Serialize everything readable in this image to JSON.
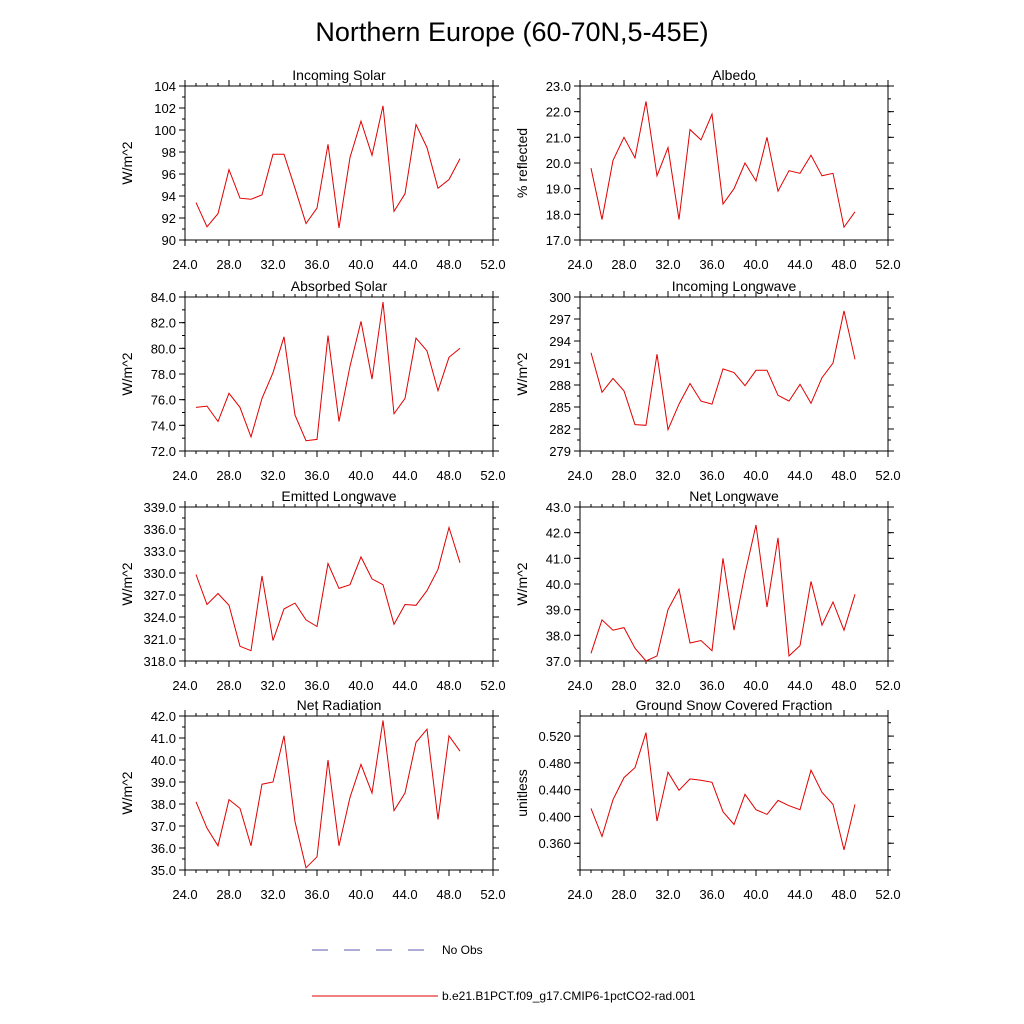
{
  "figure": {
    "title": "Northern Europe (60-70N,5-45E)"
  },
  "legend": {
    "placement": "bottom-center",
    "entries": [
      {
        "label": "No Obs",
        "color": "#5a5aa8",
        "style": "dashed"
      },
      {
        "label": "b.e21.B1PCT.f09_g17.CMIP6-1pctCO2-rad.001",
        "color": "#e00000",
        "style": "solid"
      }
    ]
  },
  "chart_data": [
    {
      "type": "line",
      "title": "Incoming Solar",
      "ylabel": "W/m^2",
      "xlim": [
        24,
        52
      ],
      "ylim": [
        90,
        104
      ],
      "xticks": [
        "24.0",
        "28.0",
        "32.0",
        "36.0",
        "40.0",
        "44.0",
        "48.0",
        "52.0"
      ],
      "yticks": [
        "90",
        "92",
        "94",
        "96",
        "98",
        "100",
        "102",
        "104"
      ],
      "series": [
        {
          "color": "#e00000",
          "x": [
            25,
            26,
            27,
            28,
            29,
            30,
            31,
            32,
            33,
            34,
            35,
            36,
            37,
            38,
            39,
            40,
            41,
            42,
            43,
            44,
            45,
            46,
            47,
            48,
            49
          ],
          "values": [
            93.4,
            91.2,
            92.4,
            96.4,
            93.8,
            93.7,
            94.1,
            97.8,
            97.8,
            94.7,
            91.5,
            92.9,
            98.7,
            91.1,
            97.5,
            100.8,
            97.7,
            102.2,
            92.6,
            94.2,
            100.5,
            98.4,
            94.7,
            95.5,
            97.4
          ]
        }
      ]
    },
    {
      "type": "line",
      "title": "Albedo",
      "ylabel": "% reflected",
      "xlim": [
        24,
        52
      ],
      "ylim": [
        17,
        23
      ],
      "xticks": [
        "24.0",
        "28.0",
        "32.0",
        "36.0",
        "40.0",
        "44.0",
        "48.0",
        "52.0"
      ],
      "yticks": [
        "17.0",
        "18.0",
        "19.0",
        "20.0",
        "21.0",
        "22.0",
        "23.0"
      ],
      "series": [
        {
          "color": "#e00000",
          "x": [
            25,
            26,
            27,
            28,
            29,
            30,
            31,
            32,
            33,
            34,
            35,
            36,
            37,
            38,
            39,
            40,
            41,
            42,
            43,
            44,
            45,
            46,
            47,
            48,
            49
          ],
          "values": [
            19.8,
            17.8,
            20.1,
            21.0,
            20.2,
            22.4,
            19.5,
            20.6,
            17.8,
            21.3,
            20.9,
            21.9,
            18.4,
            19.0,
            20.0,
            19.3,
            21.0,
            18.9,
            19.7,
            19.6,
            20.3,
            19.5,
            19.6,
            17.5,
            18.1
          ]
        }
      ]
    },
    {
      "type": "line",
      "title": "Absorbed Solar",
      "ylabel": "W/m^2",
      "xlim": [
        24,
        52
      ],
      "ylim": [
        72,
        84
      ],
      "xticks": [
        "24.0",
        "28.0",
        "32.0",
        "36.0",
        "40.0",
        "44.0",
        "48.0",
        "52.0"
      ],
      "yticks": [
        "72.0",
        "74.0",
        "76.0",
        "78.0",
        "80.0",
        "82.0",
        "84.0"
      ],
      "series": [
        {
          "color": "#e00000",
          "x": [
            25,
            26,
            27,
            28,
            29,
            30,
            31,
            32,
            33,
            34,
            35,
            36,
            37,
            38,
            39,
            40,
            41,
            42,
            43,
            44,
            45,
            46,
            47,
            48,
            49
          ],
          "values": [
            75.4,
            75.5,
            74.3,
            76.5,
            75.4,
            73.1,
            76.1,
            78.1,
            80.9,
            74.8,
            72.8,
            72.9,
            81.0,
            74.3,
            78.6,
            82.1,
            77.6,
            83.6,
            74.9,
            76.1,
            80.8,
            79.8,
            76.7,
            79.3,
            80.0
          ]
        }
      ]
    },
    {
      "type": "line",
      "title": "Incoming Longwave",
      "ylabel": "W/m^2",
      "xlim": [
        24,
        52
      ],
      "ylim": [
        279,
        300
      ],
      "xticks": [
        "24.0",
        "28.0",
        "32.0",
        "36.0",
        "40.0",
        "44.0",
        "48.0",
        "52.0"
      ],
      "yticks": [
        "279",
        "282",
        "285",
        "288",
        "291",
        "294",
        "297",
        "300"
      ],
      "series": [
        {
          "color": "#e00000",
          "x": [
            25,
            26,
            27,
            28,
            29,
            30,
            31,
            32,
            33,
            34,
            35,
            36,
            37,
            38,
            39,
            40,
            41,
            42,
            43,
            44,
            45,
            46,
            47,
            48,
            49
          ],
          "values": [
            292.4,
            287.0,
            288.9,
            287.2,
            282.6,
            282.5,
            292.2,
            281.9,
            285.4,
            288.2,
            285.8,
            285.4,
            290.2,
            289.7,
            287.9,
            290.0,
            290.0,
            286.6,
            285.8,
            288.1,
            285.5,
            289.0,
            291.0,
            298.1,
            291.5
          ]
        }
      ]
    },
    {
      "type": "line",
      "title": "Emitted Longwave",
      "ylabel": "W/m^2",
      "xlim": [
        24,
        52
      ],
      "ylim": [
        318,
        339
      ],
      "xticks": [
        "24.0",
        "28.0",
        "32.0",
        "36.0",
        "40.0",
        "44.0",
        "48.0",
        "52.0"
      ],
      "yticks": [
        "318.0",
        "321.0",
        "324.0",
        "327.0",
        "330.0",
        "333.0",
        "336.0",
        "339.0"
      ],
      "series": [
        {
          "color": "#e00000",
          "x": [
            25,
            26,
            27,
            28,
            29,
            30,
            31,
            32,
            33,
            34,
            35,
            36,
            37,
            38,
            39,
            40,
            41,
            42,
            43,
            44,
            45,
            46,
            47,
            48,
            49
          ],
          "values": [
            329.8,
            325.7,
            327.2,
            325.6,
            320.0,
            319.4,
            329.6,
            320.8,
            325.1,
            325.9,
            323.6,
            322.7,
            331.3,
            327.9,
            328.4,
            332.2,
            329.2,
            328.4,
            323.0,
            325.7,
            325.6,
            327.6,
            330.5,
            336.2,
            331.4
          ]
        }
      ]
    },
    {
      "type": "line",
      "title": "Net Longwave",
      "ylabel": "W/m^2",
      "xlim": [
        24,
        52
      ],
      "ylim": [
        37,
        43
      ],
      "xticks": [
        "24.0",
        "28.0",
        "32.0",
        "36.0",
        "40.0",
        "44.0",
        "48.0",
        "52.0"
      ],
      "yticks": [
        "37.0",
        "38.0",
        "39.0",
        "40.0",
        "41.0",
        "42.0",
        "43.0"
      ],
      "series": [
        {
          "color": "#e00000",
          "x": [
            25,
            26,
            27,
            28,
            29,
            30,
            31,
            32,
            33,
            34,
            35,
            36,
            37,
            38,
            39,
            40,
            41,
            42,
            43,
            44,
            45,
            46,
            47,
            48,
            49
          ],
          "values": [
            37.3,
            38.6,
            38.2,
            38.3,
            37.5,
            37.0,
            37.2,
            39.0,
            39.8,
            37.7,
            37.8,
            37.4,
            41.0,
            38.2,
            40.4,
            42.3,
            39.1,
            41.8,
            37.2,
            37.6,
            40.1,
            38.4,
            39.3,
            38.2,
            39.6
          ]
        }
      ]
    },
    {
      "type": "line",
      "title": "Net Radiation",
      "ylabel": "W/m^2",
      "xlim": [
        24,
        52
      ],
      "ylim": [
        35,
        42
      ],
      "xticks": [
        "24.0",
        "28.0",
        "32.0",
        "36.0",
        "40.0",
        "44.0",
        "48.0",
        "52.0"
      ],
      "yticks": [
        "35.0",
        "36.0",
        "37.0",
        "38.0",
        "39.0",
        "40.0",
        "41.0",
        "42.0"
      ],
      "series": [
        {
          "color": "#e00000",
          "x": [
            25,
            26,
            27,
            28,
            29,
            30,
            31,
            32,
            33,
            34,
            35,
            36,
            37,
            38,
            39,
            40,
            41,
            42,
            43,
            44,
            45,
            46,
            47,
            48,
            49
          ],
          "values": [
            38.1,
            36.9,
            36.1,
            38.2,
            37.8,
            36.1,
            38.9,
            39.0,
            41.1,
            37.2,
            35.1,
            35.6,
            40.0,
            36.1,
            38.3,
            39.8,
            38.5,
            41.8,
            37.7,
            38.5,
            40.8,
            41.4,
            37.3,
            41.1,
            40.4
          ]
        }
      ]
    },
    {
      "type": "line",
      "title": "Ground Snow Covered Fraction",
      "ylabel": "unitless",
      "xlim": [
        24,
        52
      ],
      "ylim": [
        0.32,
        0.55
      ],
      "xticks": [
        "24.0",
        "28.0",
        "32.0",
        "36.0",
        "40.0",
        "44.0",
        "48.0",
        "52.0"
      ],
      "yticks": [
        "0.360",
        "0.400",
        "0.440",
        "0.480",
        "0.520"
      ],
      "ytickvals": [
        0.36,
        0.4,
        0.44,
        0.48,
        0.52
      ],
      "series": [
        {
          "color": "#e00000",
          "x": [
            25,
            26,
            27,
            28,
            29,
            30,
            31,
            32,
            33,
            34,
            35,
            36,
            37,
            38,
            39,
            40,
            41,
            42,
            43,
            44,
            45,
            46,
            47,
            48,
            49
          ],
          "values": [
            0.412,
            0.37,
            0.425,
            0.458,
            0.473,
            0.525,
            0.393,
            0.466,
            0.439,
            0.456,
            0.454,
            0.451,
            0.407,
            0.388,
            0.433,
            0.41,
            0.403,
            0.424,
            0.416,
            0.41,
            0.469,
            0.436,
            0.418,
            0.35,
            0.418
          ]
        }
      ]
    }
  ]
}
